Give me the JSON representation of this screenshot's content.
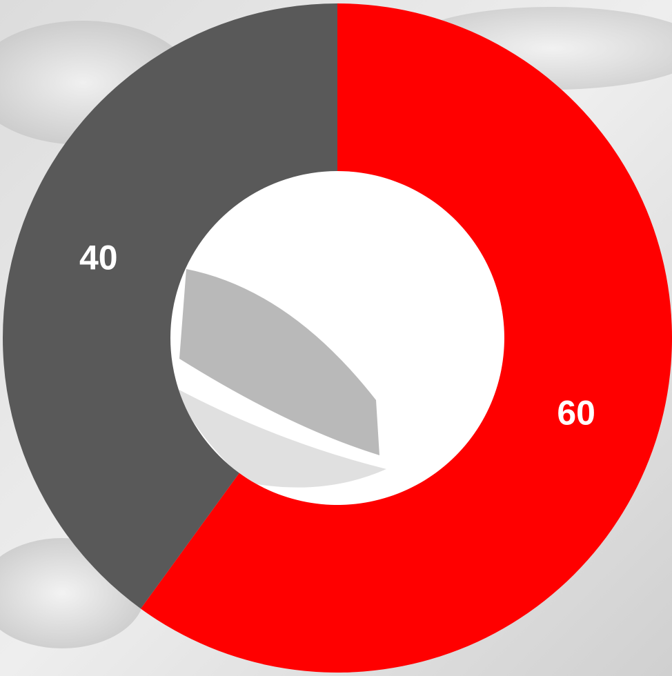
{
  "chart_data": {
    "type": "pie",
    "donut": true,
    "values": [
      60,
      40
    ],
    "colors": [
      "#ff0000",
      "#595959"
    ],
    "start_angle": 0,
    "direction": "clockwise"
  }
}
